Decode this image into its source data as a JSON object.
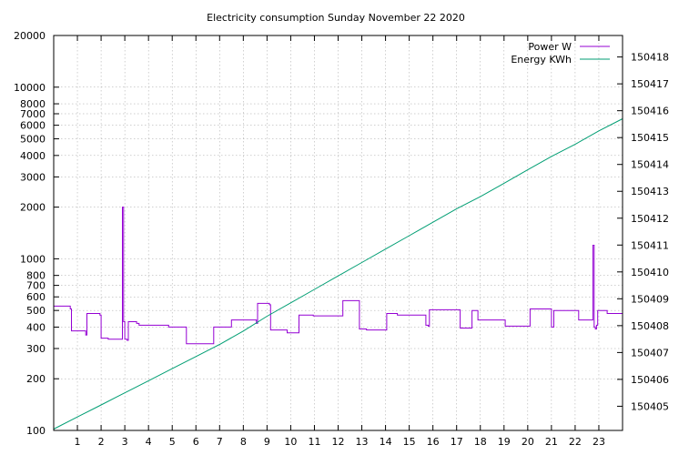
{
  "chart_data": {
    "type": "line",
    "title": "Electricity consumption Sunday November 22 2020",
    "x_ticks": [
      "1",
      "2",
      "3",
      "4",
      "5",
      "6",
      "7",
      "8",
      "9",
      "10",
      "11",
      "12",
      "13",
      "14",
      "15",
      "16",
      "17",
      "18",
      "19",
      "20",
      "21",
      "22",
      "23"
    ],
    "xlim": [
      0,
      24
    ],
    "y_left": {
      "scale": "log",
      "ylim": [
        100,
        20000
      ],
      "ticks": [
        "100",
        "200",
        "300",
        "400",
        "500",
        "600",
        "700",
        "800",
        "1000",
        "2000",
        "3000",
        "4000",
        "5000",
        "6000",
        "7000",
        "8000",
        "10000",
        "20000"
      ]
    },
    "y_right": {
      "scale": "linear",
      "ylim": [
        150404.1,
        150418.8
      ],
      "ticks": [
        "150405",
        "150406",
        "150407",
        "150408",
        "150409",
        "150410",
        "150411",
        "150412",
        "150413",
        "150414",
        "150415",
        "150416",
        "150417",
        "150418"
      ]
    },
    "grid": true,
    "legend_position": "top-right",
    "series": [
      {
        "name": "Power W",
        "axis": "left",
        "color": "#9400d3",
        "shape": "step",
        "points": [
          [
            0.0,
            530
          ],
          [
            0.7,
            510
          ],
          [
            0.75,
            380
          ],
          [
            1.35,
            360
          ],
          [
            1.4,
            480
          ],
          [
            1.95,
            470
          ],
          [
            2.0,
            345
          ],
          [
            2.3,
            340
          ],
          [
            2.8,
            340
          ],
          [
            2.9,
            2000
          ],
          [
            2.95,
            430
          ],
          [
            3.0,
            340
          ],
          [
            3.1,
            335
          ],
          [
            3.15,
            430
          ],
          [
            3.5,
            420
          ],
          [
            3.6,
            410
          ],
          [
            4.8,
            410
          ],
          [
            4.85,
            400
          ],
          [
            5.55,
            400
          ],
          [
            5.6,
            320
          ],
          [
            6.7,
            320
          ],
          [
            6.75,
            400
          ],
          [
            7.45,
            400
          ],
          [
            7.5,
            440
          ],
          [
            8.5,
            440
          ],
          [
            8.55,
            420
          ],
          [
            8.6,
            550
          ],
          [
            9.1,
            540
          ],
          [
            9.15,
            385
          ],
          [
            9.8,
            385
          ],
          [
            9.85,
            370
          ],
          [
            10.3,
            370
          ],
          [
            10.35,
            470
          ],
          [
            10.95,
            465
          ],
          [
            11.0,
            465
          ],
          [
            12.15,
            465
          ],
          [
            12.2,
            570
          ],
          [
            12.85,
            570
          ],
          [
            12.9,
            390
          ],
          [
            13.2,
            385
          ],
          [
            14.0,
            385
          ],
          [
            14.05,
            480
          ],
          [
            14.5,
            470
          ],
          [
            15.65,
            470
          ],
          [
            15.7,
            410
          ],
          [
            15.8,
            405
          ],
          [
            15.85,
            505
          ],
          [
            17.1,
            505
          ],
          [
            17.15,
            395
          ],
          [
            17.6,
            395
          ],
          [
            17.65,
            500
          ],
          [
            17.85,
            500
          ],
          [
            17.9,
            440
          ],
          [
            19.0,
            440
          ],
          [
            19.05,
            405
          ],
          [
            20.05,
            405
          ],
          [
            20.1,
            510
          ],
          [
            20.95,
            510
          ],
          [
            21.0,
            400
          ],
          [
            21.05,
            400
          ],
          [
            21.1,
            500
          ],
          [
            22.1,
            500
          ],
          [
            22.15,
            440
          ],
          [
            22.7,
            440
          ],
          [
            22.75,
            1200
          ],
          [
            22.8,
            400
          ],
          [
            22.85,
            390
          ],
          [
            22.9,
            410
          ],
          [
            22.95,
            500
          ],
          [
            23.3,
            500
          ],
          [
            23.35,
            480
          ],
          [
            24.0,
            480
          ]
        ]
      },
      {
        "name": "Energy KWh",
        "axis": "right",
        "color": "#009e73",
        "shape": "line",
        "points": [
          [
            0.0,
            150404.15
          ],
          [
            1.0,
            150404.6
          ],
          [
            2.0,
            150405.05
          ],
          [
            3.0,
            150405.5
          ],
          [
            4.0,
            150405.95
          ],
          [
            5.0,
            150406.4
          ],
          [
            6.0,
            150406.85
          ],
          [
            7.0,
            150407.3
          ],
          [
            8.0,
            150407.8
          ],
          [
            9.0,
            150408.35
          ],
          [
            10.0,
            150408.85
          ],
          [
            11.0,
            150409.35
          ],
          [
            12.0,
            150409.85
          ],
          [
            13.0,
            150410.35
          ],
          [
            14.0,
            150410.85
          ],
          [
            15.0,
            150411.35
          ],
          [
            16.0,
            150411.85
          ],
          [
            17.0,
            150412.35
          ],
          [
            18.0,
            150412.8
          ],
          [
            19.0,
            150413.3
          ],
          [
            20.0,
            150413.8
          ],
          [
            21.0,
            150414.3
          ],
          [
            22.0,
            150414.75
          ],
          [
            23.0,
            150415.25
          ],
          [
            24.0,
            150415.7
          ]
        ]
      }
    ]
  }
}
